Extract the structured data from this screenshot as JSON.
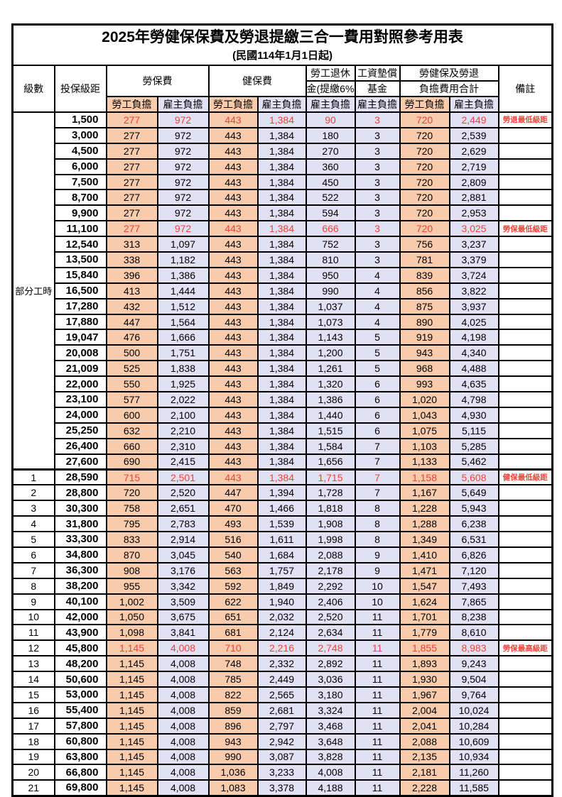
{
  "title": "2025年勞健保保費及勞退提繳三合一費用對照參考用表",
  "subtitle": "(民國114年1月1日起)",
  "header": {
    "level": "級數",
    "bracket": "投保級距",
    "labor_ins": "勞保費",
    "health_ins": "健保費",
    "pension_top": "勞工退休",
    "pension_bottom": "金(提繳6%)",
    "fund_top": "工資墊償",
    "fund_bottom": "基金",
    "total_top": "勞健保及勞退",
    "total_bottom": "負擔費用合計",
    "remark": "備註",
    "employee": "勞工負擔",
    "employer": "雇主負擔"
  },
  "columns": [
    "級數",
    "投保級距",
    "勞保費-勞工負擔",
    "勞保費-雇主負擔",
    "健保費-勞工負擔",
    "健保費-雇主負擔",
    "勞工退休金(提繳6%)-雇主負擔",
    "工資墊償基金-雇主負擔",
    "勞健保及勞退負擔費用合計-勞工負擔",
    "勞健保及勞退負擔費用合計-雇主負擔",
    "備註"
  ],
  "part_time_group": {
    "label": "部分工時",
    "rowspan": 23
  },
  "colors": {
    "employee_bg": "#F8CBAD",
    "employer_bg": "#E2E0F3",
    "highlight_text": "#F04438"
  },
  "rows": [
    {
      "br": "1,500",
      "v": [
        "277",
        "972",
        "443",
        "1,384",
        "90",
        "3",
        "720",
        "2,449"
      ],
      "rm": "勞退最低級距",
      "red": true
    },
    {
      "br": "3,000",
      "v": [
        "277",
        "972",
        "443",
        "1,384",
        "180",
        "3",
        "720",
        "2,539"
      ]
    },
    {
      "br": "4,500",
      "v": [
        "277",
        "972",
        "443",
        "1,384",
        "270",
        "3",
        "720",
        "2,629"
      ]
    },
    {
      "br": "6,000",
      "v": [
        "277",
        "972",
        "443",
        "1,384",
        "360",
        "3",
        "720",
        "2,719"
      ]
    },
    {
      "br": "7,500",
      "v": [
        "277",
        "972",
        "443",
        "1,384",
        "450",
        "3",
        "720",
        "2,809"
      ]
    },
    {
      "br": "8,700",
      "v": [
        "277",
        "972",
        "443",
        "1,384",
        "522",
        "3",
        "720",
        "2,881"
      ]
    },
    {
      "br": "9,900",
      "v": [
        "277",
        "972",
        "443",
        "1,384",
        "594",
        "3",
        "720",
        "2,953"
      ]
    },
    {
      "br": "11,100",
      "v": [
        "277",
        "972",
        "443",
        "1,384",
        "666",
        "3",
        "720",
        "3,025"
      ],
      "rm": "勞保最低級距",
      "red": true
    },
    {
      "br": "12,540",
      "v": [
        "313",
        "1,097",
        "443",
        "1,384",
        "752",
        "3",
        "756",
        "3,237"
      ]
    },
    {
      "br": "13,500",
      "v": [
        "338",
        "1,182",
        "443",
        "1,384",
        "810",
        "3",
        "781",
        "3,379"
      ]
    },
    {
      "br": "15,840",
      "v": [
        "396",
        "1,386",
        "443",
        "1,384",
        "950",
        "4",
        "839",
        "3,724"
      ]
    },
    {
      "br": "16,500",
      "v": [
        "413",
        "1,444",
        "443",
        "1,384",
        "990",
        "4",
        "856",
        "3,822"
      ]
    },
    {
      "br": "17,280",
      "v": [
        "432",
        "1,512",
        "443",
        "1,384",
        "1,037",
        "4",
        "875",
        "3,937"
      ]
    },
    {
      "br": "17,880",
      "v": [
        "447",
        "1,564",
        "443",
        "1,384",
        "1,073",
        "4",
        "890",
        "4,025"
      ]
    },
    {
      "br": "19,047",
      "v": [
        "476",
        "1,666",
        "443",
        "1,384",
        "1,143",
        "5",
        "919",
        "4,198"
      ]
    },
    {
      "br": "20,008",
      "v": [
        "500",
        "1,751",
        "443",
        "1,384",
        "1,200",
        "5",
        "943",
        "4,340"
      ]
    },
    {
      "br": "21,009",
      "v": [
        "525",
        "1,838",
        "443",
        "1,384",
        "1,261",
        "5",
        "968",
        "4,488"
      ]
    },
    {
      "br": "22,000",
      "v": [
        "550",
        "1,925",
        "443",
        "1,384",
        "1,320",
        "6",
        "993",
        "4,635"
      ]
    },
    {
      "br": "23,100",
      "v": [
        "577",
        "2,022",
        "443",
        "1,384",
        "1,386",
        "6",
        "1,020",
        "4,798"
      ]
    },
    {
      "br": "24,000",
      "v": [
        "600",
        "2,100",
        "443",
        "1,384",
        "1,440",
        "6",
        "1,043",
        "4,930"
      ]
    },
    {
      "br": "25,250",
      "v": [
        "632",
        "2,210",
        "443",
        "1,384",
        "1,515",
        "6",
        "1,075",
        "5,115"
      ]
    },
    {
      "br": "26,400",
      "v": [
        "660",
        "2,310",
        "443",
        "1,384",
        "1,584",
        "7",
        "1,103",
        "5,285"
      ]
    },
    {
      "br": "27,600",
      "v": [
        "690",
        "2,415",
        "443",
        "1,384",
        "1,656",
        "7",
        "1,133",
        "5,462"
      ]
    },
    {
      "lv": "1",
      "br": "28,590",
      "v": [
        "715",
        "2,501",
        "443",
        "1,384",
        "1,715",
        "7",
        "1,158",
        "5,608"
      ],
      "rm": "健保最低級距",
      "red": true
    },
    {
      "lv": "2",
      "br": "28,800",
      "v": [
        "720",
        "2,520",
        "447",
        "1,394",
        "1,728",
        "7",
        "1,167",
        "5,649"
      ]
    },
    {
      "lv": "3",
      "br": "30,300",
      "v": [
        "758",
        "2,651",
        "470",
        "1,466",
        "1,818",
        "8",
        "1,228",
        "5,943"
      ]
    },
    {
      "lv": "4",
      "br": "31,800",
      "v": [
        "795",
        "2,783",
        "493",
        "1,539",
        "1,908",
        "8",
        "1,288",
        "6,238"
      ]
    },
    {
      "lv": "5",
      "br": "33,300",
      "v": [
        "833",
        "2,914",
        "516",
        "1,611",
        "1,998",
        "8",
        "1,349",
        "6,531"
      ]
    },
    {
      "lv": "6",
      "br": "34,800",
      "v": [
        "870",
        "3,045",
        "540",
        "1,684",
        "2,088",
        "9",
        "1,410",
        "6,826"
      ]
    },
    {
      "lv": "7",
      "br": "36,300",
      "v": [
        "908",
        "3,176",
        "563",
        "1,757",
        "2,178",
        "9",
        "1,471",
        "7,120"
      ]
    },
    {
      "lv": "8",
      "br": "38,200",
      "v": [
        "955",
        "3,342",
        "592",
        "1,849",
        "2,292",
        "10",
        "1,547",
        "7,493"
      ]
    },
    {
      "lv": "9",
      "br": "40,100",
      "v": [
        "1,002",
        "3,509",
        "622",
        "1,940",
        "2,406",
        "10",
        "1,624",
        "7,865"
      ]
    },
    {
      "lv": "10",
      "br": "42,000",
      "v": [
        "1,050",
        "3,675",
        "651",
        "2,032",
        "2,520",
        "11",
        "1,701",
        "8,238"
      ]
    },
    {
      "lv": "11",
      "br": "43,900",
      "v": [
        "1,098",
        "3,841",
        "681",
        "2,124",
        "2,634",
        "11",
        "1,779",
        "8,610"
      ]
    },
    {
      "lv": "12",
      "br": "45,800",
      "v": [
        "1,145",
        "4,008",
        "710",
        "2,216",
        "2,748",
        "11",
        "1,855",
        "8,983"
      ],
      "rm": "勞保最高級距",
      "red": true
    },
    {
      "lv": "13",
      "br": "48,200",
      "v": [
        "1,145",
        "4,008",
        "748",
        "2,332",
        "2,892",
        "11",
        "1,893",
        "9,243"
      ]
    },
    {
      "lv": "14",
      "br": "50,600",
      "v": [
        "1,145",
        "4,008",
        "785",
        "2,449",
        "3,036",
        "11",
        "1,930",
        "9,504"
      ]
    },
    {
      "lv": "15",
      "br": "53,000",
      "v": [
        "1,145",
        "4,008",
        "822",
        "2,565",
        "3,180",
        "11",
        "1,967",
        "9,764"
      ]
    },
    {
      "lv": "16",
      "br": "55,400",
      "v": [
        "1,145",
        "4,008",
        "859",
        "2,681",
        "3,324",
        "11",
        "2,004",
        "10,024"
      ]
    },
    {
      "lv": "17",
      "br": "57,800",
      "v": [
        "1,145",
        "4,008",
        "896",
        "2,797",
        "3,468",
        "11",
        "2,041",
        "10,284"
      ]
    },
    {
      "lv": "18",
      "br": "60,800",
      "v": [
        "1,145",
        "4,008",
        "943",
        "2,942",
        "3,648",
        "11",
        "2,088",
        "10,609"
      ]
    },
    {
      "lv": "19",
      "br": "63,800",
      "v": [
        "1,145",
        "4,008",
        "990",
        "3,087",
        "3,828",
        "11",
        "2,135",
        "10,934"
      ]
    },
    {
      "lv": "20",
      "br": "66,800",
      "v": [
        "1,145",
        "4,008",
        "1,036",
        "3,233",
        "4,008",
        "11",
        "2,181",
        "11,260"
      ]
    },
    {
      "lv": "21",
      "br": "69,800",
      "v": [
        "1,145",
        "4,008",
        "1,083",
        "3,378",
        "4,188",
        "11",
        "2,228",
        "11,585"
      ]
    }
  ]
}
